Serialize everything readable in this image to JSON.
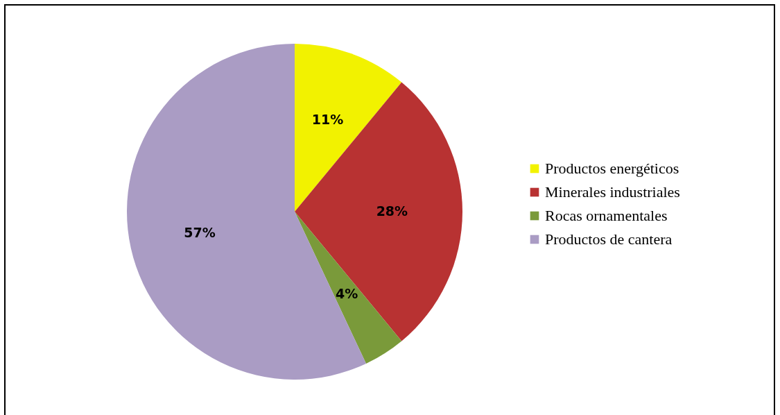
{
  "chart_data": {
    "type": "pie",
    "categories": [
      "Productos energéticos",
      "Minerales industriales",
      "Rocas ornamentales",
      "Productos de cantera"
    ],
    "values": [
      11,
      28,
      4,
      57
    ],
    "colors": [
      "#f2f200",
      "#b83232",
      "#7a9a3a",
      "#aa9cc4"
    ],
    "value_labels": [
      "11%",
      "28%",
      "4%",
      "57%"
    ],
    "legend": "right"
  }
}
